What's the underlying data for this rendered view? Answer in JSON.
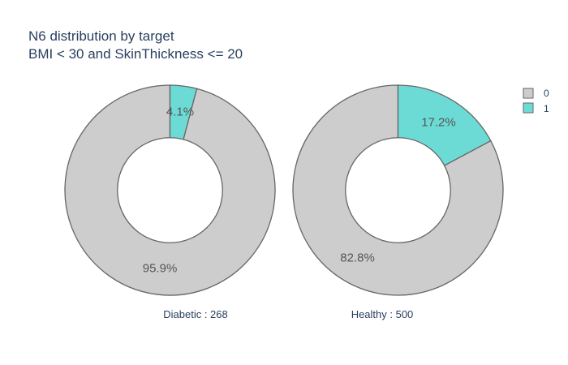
{
  "chart_data": {
    "type": "pie",
    "title_lines": [
      "N6 distribution by target",
      "BMI < 30 and SkinThickness <= 20"
    ],
    "legend": {
      "placement": "top-right",
      "entries": [
        {
          "label": "0",
          "color": "#cdcdcd"
        },
        {
          "label": "1",
          "color": "#6cdbd6"
        }
      ]
    },
    "hole": 0.5,
    "pies": [
      {
        "name": "Diabetic : 268",
        "slices": [
          {
            "category": "0",
            "percent": 95.9,
            "label": "95.9%",
            "color": "#cdcdcd"
          },
          {
            "category": "1",
            "percent": 4.1,
            "label": "4.1%",
            "color": "#6cdbd6"
          }
        ]
      },
      {
        "name": "Healthy : 500",
        "slices": [
          {
            "category": "0",
            "percent": 82.8,
            "label": "82.8%",
            "color": "#cdcdcd"
          },
          {
            "category": "1",
            "percent": 17.2,
            "label": "17.2%",
            "color": "#6cdbd6"
          }
        ]
      }
    ]
  }
}
